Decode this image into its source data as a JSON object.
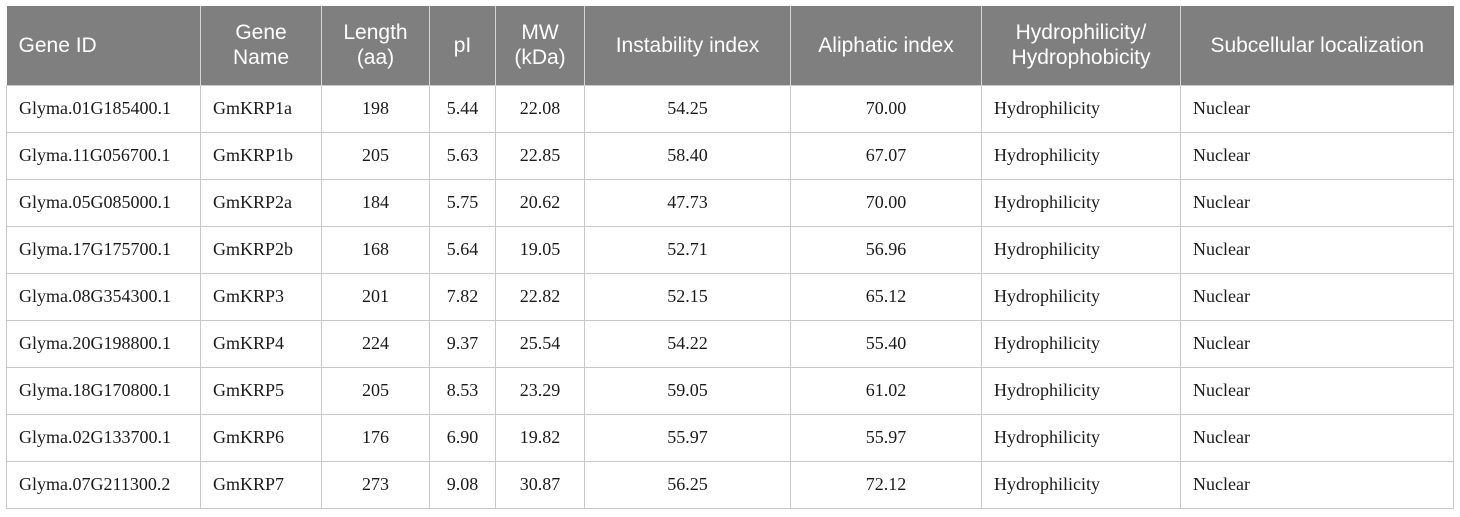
{
  "table": {
    "headers": [
      [
        "Gene ID"
      ],
      [
        "Gene",
        "Name"
      ],
      [
        "Length",
        "(aa)"
      ],
      [
        "pI"
      ],
      [
        "MW",
        "(kDa)"
      ],
      [
        "Instability index"
      ],
      [
        "Aliphatic index"
      ],
      [
        "Hydrophilicity/",
        "Hydrophobicity"
      ],
      [
        "Subcellular localization"
      ]
    ],
    "rows": [
      [
        "Glyma.01G185400.1",
        "GmKRP1a",
        "198",
        "5.44",
        "22.08",
        "54.25",
        "70.00",
        "Hydrophilicity",
        "Nuclear"
      ],
      [
        "Glyma.11G056700.1",
        "GmKRP1b",
        "205",
        "5.63",
        "22.85",
        "58.40",
        "67.07",
        "Hydrophilicity",
        "Nuclear"
      ],
      [
        "Glyma.05G085000.1",
        "GmKRP2a",
        "184",
        "5.75",
        "20.62",
        "47.73",
        "70.00",
        "Hydrophilicity",
        "Nuclear"
      ],
      [
        "Glyma.17G175700.1",
        "GmKRP2b",
        "168",
        "5.64",
        "19.05",
        "52.71",
        "56.96",
        "Hydrophilicity",
        "Nuclear"
      ],
      [
        "Glyma.08G354300.1",
        "GmKRP3",
        "201",
        "7.82",
        "22.82",
        "52.15",
        "65.12",
        "Hydrophilicity",
        "Nuclear"
      ],
      [
        "Glyma.20G198800.1",
        "GmKRP4",
        "224",
        "9.37",
        "25.54",
        "54.22",
        "55.40",
        "Hydrophilicity",
        "Nuclear"
      ],
      [
        "Glyma.18G170800.1",
        "GmKRP5",
        "205",
        "8.53",
        "23.29",
        "59.05",
        "61.02",
        "Hydrophilicity",
        "Nuclear"
      ],
      [
        "Glyma.02G133700.1",
        "GmKRP6",
        "176",
        "6.90",
        "19.82",
        "55.97",
        "55.97",
        "Hydrophilicity",
        "Nuclear"
      ],
      [
        "Glyma.07G211300.2",
        "GmKRP7",
        "273",
        "9.08",
        "30.87",
        "56.25",
        "72.12",
        "Hydrophilicity",
        "Nuclear"
      ]
    ]
  },
  "colors": {
    "header_bg": "#7f7f7f",
    "header_text": "#ffffff",
    "grid": "#c8c8c8"
  }
}
